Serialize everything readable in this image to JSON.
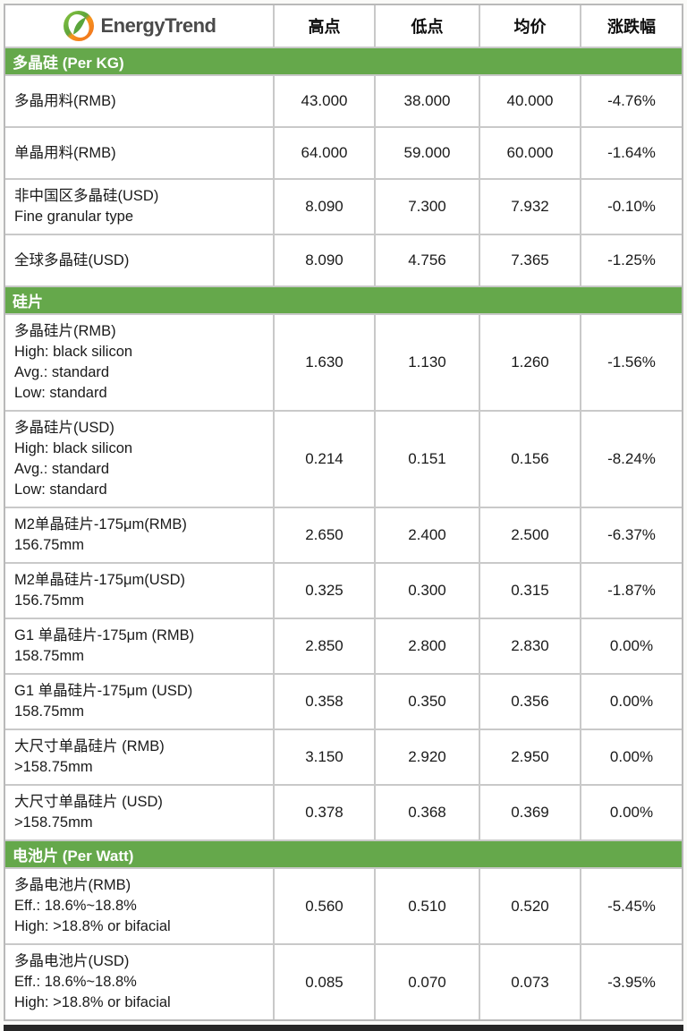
{
  "brand": {
    "name": "EnergyTrend",
    "logo_icon": "energytrend-leaf-globe-icon"
  },
  "colors": {
    "section_green": "#65a84b",
    "logo_green": "#6cb33f",
    "logo_orange": "#f28a1e",
    "grid_gray": "#c9c9c9"
  },
  "chart_data": {
    "type": "table",
    "columns": [
      "高点",
      "低点",
      "均价",
      "涨跌幅"
    ],
    "sections": [
      {
        "title": "多晶硅 (Per KG)",
        "rows": [
          {
            "label": "多晶用料(RMB)",
            "values": [
              "43.000",
              "38.000",
              "40.000",
              "-4.76%"
            ]
          },
          {
            "label": "单晶用料(RMB)",
            "values": [
              "64.000",
              "59.000",
              "60.000",
              "-1.64%"
            ]
          },
          {
            "label": "非中国区多晶硅(USD)\nFine granular type",
            "values": [
              "8.090",
              "7.300",
              "7.932",
              "-0.10%"
            ]
          },
          {
            "label": "全球多晶硅(USD)",
            "values": [
              "8.090",
              "4.756",
              "7.365",
              "-1.25%"
            ]
          }
        ]
      },
      {
        "title": "硅片",
        "rows": [
          {
            "label": "多晶硅片(RMB)\nHigh: black silicon\nAvg.: standard\nLow: standard",
            "values": [
              "1.630",
              "1.130",
              "1.260",
              "-1.56%"
            ]
          },
          {
            "label": "多晶硅片(USD)\nHigh: black silicon\nAvg.: standard\nLow: standard",
            "values": [
              "0.214",
              "0.151",
              "0.156",
              "-8.24%"
            ]
          },
          {
            "label": "M2单晶硅片-175μm(RMB)\n156.75mm",
            "values": [
              "2.650",
              "2.400",
              "2.500",
              "-6.37%"
            ]
          },
          {
            "label": "M2单晶硅片-175μm(USD)\n156.75mm",
            "values": [
              "0.325",
              "0.300",
              "0.315",
              "-1.87%"
            ]
          },
          {
            "label": "G1 单晶硅片-175μm (RMB)\n158.75mm",
            "values": [
              "2.850",
              "2.800",
              "2.830",
              "0.00%"
            ]
          },
          {
            "label": "G1 单晶硅片-175μm (USD)\n158.75mm",
            "values": [
              "0.358",
              "0.350",
              "0.356",
              "0.00%"
            ]
          },
          {
            "label": "大尺寸单晶硅片 (RMB)\n>158.75mm",
            "values": [
              "3.150",
              "2.920",
              "2.950",
              "0.00%"
            ]
          },
          {
            "label": "大尺寸单晶硅片 (USD)\n>158.75mm",
            "values": [
              "0.378",
              "0.368",
              "0.369",
              "0.00%"
            ]
          }
        ]
      },
      {
        "title": "电池片 (Per Watt)",
        "rows": [
          {
            "label": "多晶电池片(RMB)\nEff.: 18.6%~18.8%\nHigh: >18.8% or bifacial",
            "values": [
              "0.560",
              "0.510",
              "0.520",
              "-5.45%"
            ]
          },
          {
            "label": "多晶电池片(USD)\nEff.: 18.6%~18.8%\nHigh: >18.8% or bifacial",
            "values": [
              "0.085",
              "0.070",
              "0.073",
              "-3.95%"
            ]
          }
        ]
      }
    ]
  }
}
